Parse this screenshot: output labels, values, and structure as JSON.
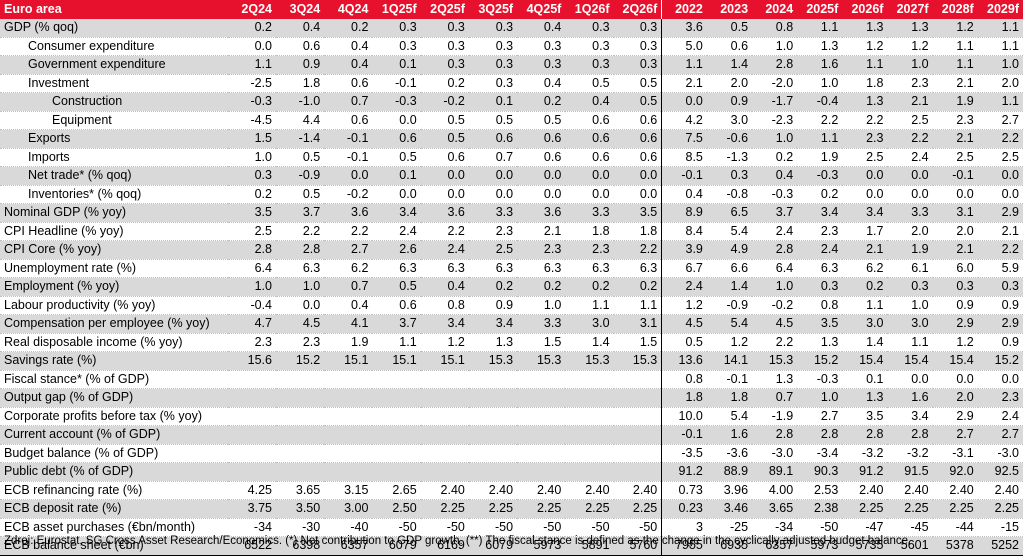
{
  "table": {
    "header": [
      "Euro area",
      "2Q24",
      "3Q24",
      "4Q24",
      "1Q25f",
      "2Q25f",
      "3Q25f",
      "4Q25f",
      "1Q26f",
      "2Q26f",
      "2022",
      "2023",
      "2024",
      "2025f",
      "2026f",
      "2027f",
      "2028f",
      "2029f"
    ],
    "rows": [
      {
        "label": "GDP (% qoq)",
        "indent": 0,
        "shade": true,
        "cells": [
          "0.2",
          "0.4",
          "0.2",
          "0.3",
          "0.3",
          "0.3",
          "0.4",
          "0.3",
          "0.3",
          "3.6",
          "0.5",
          "0.8",
          "1.1",
          "1.3",
          "1.3",
          "1.2",
          "1.1"
        ]
      },
      {
        "label": "Consumer expenditure",
        "indent": 1,
        "shade": false,
        "cells": [
          "0.0",
          "0.6",
          "0.4",
          "0.3",
          "0.3",
          "0.3",
          "0.3",
          "0.3",
          "0.3",
          "5.0",
          "0.6",
          "1.0",
          "1.3",
          "1.2",
          "1.2",
          "1.1",
          "1.1"
        ]
      },
      {
        "label": "Government expenditure",
        "indent": 1,
        "shade": true,
        "cells": [
          "1.1",
          "0.9",
          "0.4",
          "0.1",
          "0.3",
          "0.3",
          "0.3",
          "0.3",
          "0.3",
          "1.1",
          "1.4",
          "2.8",
          "1.6",
          "1.1",
          "1.0",
          "1.1",
          "1.0"
        ]
      },
      {
        "label": "Investment",
        "indent": 1,
        "shade": false,
        "cells": [
          "-2.5",
          "1.8",
          "0.6",
          "-0.1",
          "0.2",
          "0.3",
          "0.4",
          "0.5",
          "0.5",
          "2.1",
          "2.0",
          "-2.0",
          "1.0",
          "1.8",
          "2.3",
          "2.1",
          "2.0"
        ]
      },
      {
        "label": "Construction",
        "indent": 2,
        "shade": true,
        "cells": [
          "-0.3",
          "-1.0",
          "0.7",
          "-0.3",
          "-0.2",
          "0.1",
          "0.2",
          "0.4",
          "0.5",
          "0.0",
          "0.9",
          "-1.7",
          "-0.4",
          "1.3",
          "2.1",
          "1.9",
          "1.1"
        ]
      },
      {
        "label": "Equipment",
        "indent": 2,
        "shade": false,
        "cells": [
          "-4.5",
          "4.4",
          "0.6",
          "0.0",
          "0.5",
          "0.5",
          "0.5",
          "0.6",
          "0.6",
          "4.2",
          "3.0",
          "-2.3",
          "2.2",
          "2.2",
          "2.5",
          "2.3",
          "2.7"
        ]
      },
      {
        "label": "Exports",
        "indent": 1,
        "shade": true,
        "cells": [
          "1.5",
          "-1.4",
          "-0.1",
          "0.6",
          "0.5",
          "0.6",
          "0.6",
          "0.6",
          "0.6",
          "7.5",
          "-0.6",
          "1.0",
          "1.1",
          "2.3",
          "2.2",
          "2.1",
          "2.2"
        ]
      },
      {
        "label": "Imports",
        "indent": 1,
        "shade": false,
        "cells": [
          "1.0",
          "0.5",
          "-0.1",
          "0.5",
          "0.6",
          "0.7",
          "0.6",
          "0.6",
          "0.6",
          "8.5",
          "-1.3",
          "0.2",
          "1.9",
          "2.5",
          "2.4",
          "2.5",
          "2.5"
        ]
      },
      {
        "label": "Net trade* (% qoq)",
        "indent": 1,
        "shade": true,
        "cells": [
          "0.3",
          "-0.9",
          "0.0",
          "0.1",
          "0.0",
          "0.0",
          "0.0",
          "0.0",
          "0.0",
          "-0.1",
          "0.3",
          "0.4",
          "-0.3",
          "0.0",
          "0.0",
          "-0.1",
          "0.0"
        ]
      },
      {
        "label": "Inventories* (% qoq)",
        "indent": 1,
        "shade": false,
        "cells": [
          "0.2",
          "0.5",
          "-0.2",
          "0.0",
          "0.0",
          "0.0",
          "0.0",
          "0.0",
          "0.0",
          "0.4",
          "-0.8",
          "-0.3",
          "0.2",
          "0.0",
          "0.0",
          "0.0",
          "0.0"
        ]
      },
      {
        "label": "Nominal GDP (% yoy)",
        "indent": 0,
        "shade": true,
        "cells": [
          "3.5",
          "3.7",
          "3.6",
          "3.4",
          "3.6",
          "3.3",
          "3.6",
          "3.3",
          "3.5",
          "8.9",
          "6.5",
          "3.7",
          "3.4",
          "3.4",
          "3.3",
          "3.1",
          "2.9"
        ]
      },
      {
        "label": "CPI Headline (% yoy)",
        "indent": 0,
        "shade": false,
        "cells": [
          "2.5",
          "2.2",
          "2.2",
          "2.4",
          "2.2",
          "2.3",
          "2.1",
          "1.8",
          "1.8",
          "8.4",
          "5.4",
          "2.4",
          "2.3",
          "1.7",
          "2.0",
          "2.0",
          "2.1"
        ]
      },
      {
        "label": "CPI Core (% yoy)",
        "indent": 0,
        "shade": true,
        "cells": [
          "2.8",
          "2.8",
          "2.7",
          "2.6",
          "2.4",
          "2.5",
          "2.3",
          "2.3",
          "2.2",
          "3.9",
          "4.9",
          "2.8",
          "2.4",
          "2.1",
          "1.9",
          "2.1",
          "2.2"
        ]
      },
      {
        "label": "Unemployment rate (%)",
        "indent": 0,
        "shade": false,
        "cells": [
          "6.4",
          "6.3",
          "6.2",
          "6.3",
          "6.3",
          "6.3",
          "6.3",
          "6.3",
          "6.3",
          "6.7",
          "6.6",
          "6.4",
          "6.3",
          "6.2",
          "6.1",
          "6.0",
          "5.9"
        ]
      },
      {
        "label": "Employment (% yoy)",
        "indent": 0,
        "shade": true,
        "cells": [
          "1.0",
          "1.0",
          "0.7",
          "0.5",
          "0.4",
          "0.2",
          "0.2",
          "0.2",
          "0.2",
          "2.4",
          "1.4",
          "1.0",
          "0.3",
          "0.2",
          "0.3",
          "0.3",
          "0.3"
        ]
      },
      {
        "label": "Labour productivity (% yoy)",
        "indent": 0,
        "shade": false,
        "cells": [
          "-0.4",
          "0.0",
          "0.4",
          "0.6",
          "0.8",
          "0.9",
          "1.0",
          "1.1",
          "1.1",
          "1.2",
          "-0.9",
          "-0.2",
          "0.8",
          "1.1",
          "1.0",
          "0.9",
          "0.9"
        ]
      },
      {
        "label": "Compensation per employee (% yoy)",
        "indent": 0,
        "shade": true,
        "cells": [
          "4.7",
          "4.5",
          "4.1",
          "3.7",
          "3.4",
          "3.4",
          "3.3",
          "3.0",
          "3.1",
          "4.5",
          "5.4",
          "4.5",
          "3.5",
          "3.0",
          "3.0",
          "2.9",
          "2.9"
        ]
      },
      {
        "label": "Real disposable income (% yoy)",
        "indent": 0,
        "shade": false,
        "cells": [
          "2.3",
          "2.3",
          "1.9",
          "1.1",
          "1.2",
          "1.3",
          "1.5",
          "1.4",
          "1.5",
          "0.5",
          "1.2",
          "2.2",
          "1.3",
          "1.4",
          "1.1",
          "1.2",
          "0.9"
        ]
      },
      {
        "label": "Savings rate (%)",
        "indent": 0,
        "shade": true,
        "cells": [
          "15.6",
          "15.2",
          "15.1",
          "15.1",
          "15.1",
          "15.3",
          "15.3",
          "15.3",
          "15.3",
          "13.6",
          "14.1",
          "15.3",
          "15.2",
          "15.4",
          "15.4",
          "15.4",
          "15.2"
        ]
      },
      {
        "label": "Fiscal stance* (% of GDP)",
        "indent": 0,
        "shade": false,
        "cells": [
          "",
          "",
          "",
          "",
          "",
          "",
          "",
          "",
          "",
          "0.8",
          "-0.1",
          "1.3",
          "-0.3",
          "0.1",
          "0.0",
          "0.0",
          "0.0"
        ]
      },
      {
        "label": "Output gap (% of GDP)",
        "indent": 0,
        "shade": true,
        "cells": [
          "",
          "",
          "",
          "",
          "",
          "",
          "",
          "",
          "",
          "1.8",
          "1.8",
          "0.7",
          "1.0",
          "1.3",
          "1.6",
          "2.0",
          "2.3"
        ]
      },
      {
        "label": "Corporate profits before tax (% yoy)",
        "indent": 0,
        "shade": false,
        "cells": [
          "",
          "",
          "",
          "",
          "",
          "",
          "",
          "",
          "",
          "10.0",
          "5.4",
          "-1.9",
          "2.7",
          "3.5",
          "3.4",
          "2.9",
          "2.4"
        ]
      },
      {
        "label": "Current account (% of GDP)",
        "indent": 0,
        "shade": true,
        "cells": [
          "",
          "",
          "",
          "",
          "",
          "",
          "",
          "",
          "",
          "-0.1",
          "1.6",
          "2.8",
          "2.8",
          "2.8",
          "2.8",
          "2.7",
          "2.7"
        ]
      },
      {
        "label": "Budget balance (% of GDP)",
        "indent": 0,
        "shade": false,
        "cells": [
          "",
          "",
          "",
          "",
          "",
          "",
          "",
          "",
          "",
          "-3.5",
          "-3.6",
          "-3.0",
          "-3.4",
          "-3.2",
          "-3.2",
          "-3.1",
          "-3.0"
        ]
      },
      {
        "label": "Public debt (% of GDP)",
        "indent": 0,
        "shade": true,
        "cells": [
          "",
          "",
          "",
          "",
          "",
          "",
          "",
          "",
          "",
          "91.2",
          "88.9",
          "89.1",
          "90.3",
          "91.2",
          "91.5",
          "92.0",
          "92.5"
        ]
      },
      {
        "label": "ECB refinancing rate (%)",
        "indent": 0,
        "shade": false,
        "cells": [
          "4.25",
          "3.65",
          "3.15",
          "2.65",
          "2.40",
          "2.40",
          "2.40",
          "2.40",
          "2.40",
          "0.73",
          "3.96",
          "4.00",
          "2.53",
          "2.40",
          "2.40",
          "2.40",
          "2.40"
        ]
      },
      {
        "label": "ECB deposit rate (%)",
        "indent": 0,
        "shade": true,
        "cells": [
          "3.75",
          "3.50",
          "3.00",
          "2.50",
          "2.25",
          "2.25",
          "2.25",
          "2.25",
          "2.25",
          "0.23",
          "3.46",
          "3.65",
          "2.38",
          "2.25",
          "2.25",
          "2.25",
          "2.25"
        ]
      },
      {
        "label": "ECB asset purchases (€bn/month)",
        "indent": 0,
        "shade": false,
        "cells": [
          "-34",
          "-30",
          "-40",
          "-50",
          "-50",
          "-50",
          "-50",
          "-50",
          "-50",
          "3",
          "-25",
          "-34",
          "-50",
          "-47",
          "-45",
          "-44",
          "-15"
        ]
      },
      {
        "label": "ECB balance sheet (€bn)",
        "indent": 0,
        "shade": true,
        "cells": [
          "6522",
          "6398",
          "6357",
          "6079",
          "6169",
          "6079",
          "5973",
          "5891",
          "5760",
          "7955",
          "6935",
          "6357",
          "5973",
          "5735",
          "5601",
          "5378",
          "5252"
        ]
      }
    ]
  },
  "footnote": "Zdroj: Eurostat, SG Cross Asset Research/Economics. (*) Net contribution to GDP growth. (**) The fiscal stance is defined as the change in the cyclically adjusted budget balance."
}
